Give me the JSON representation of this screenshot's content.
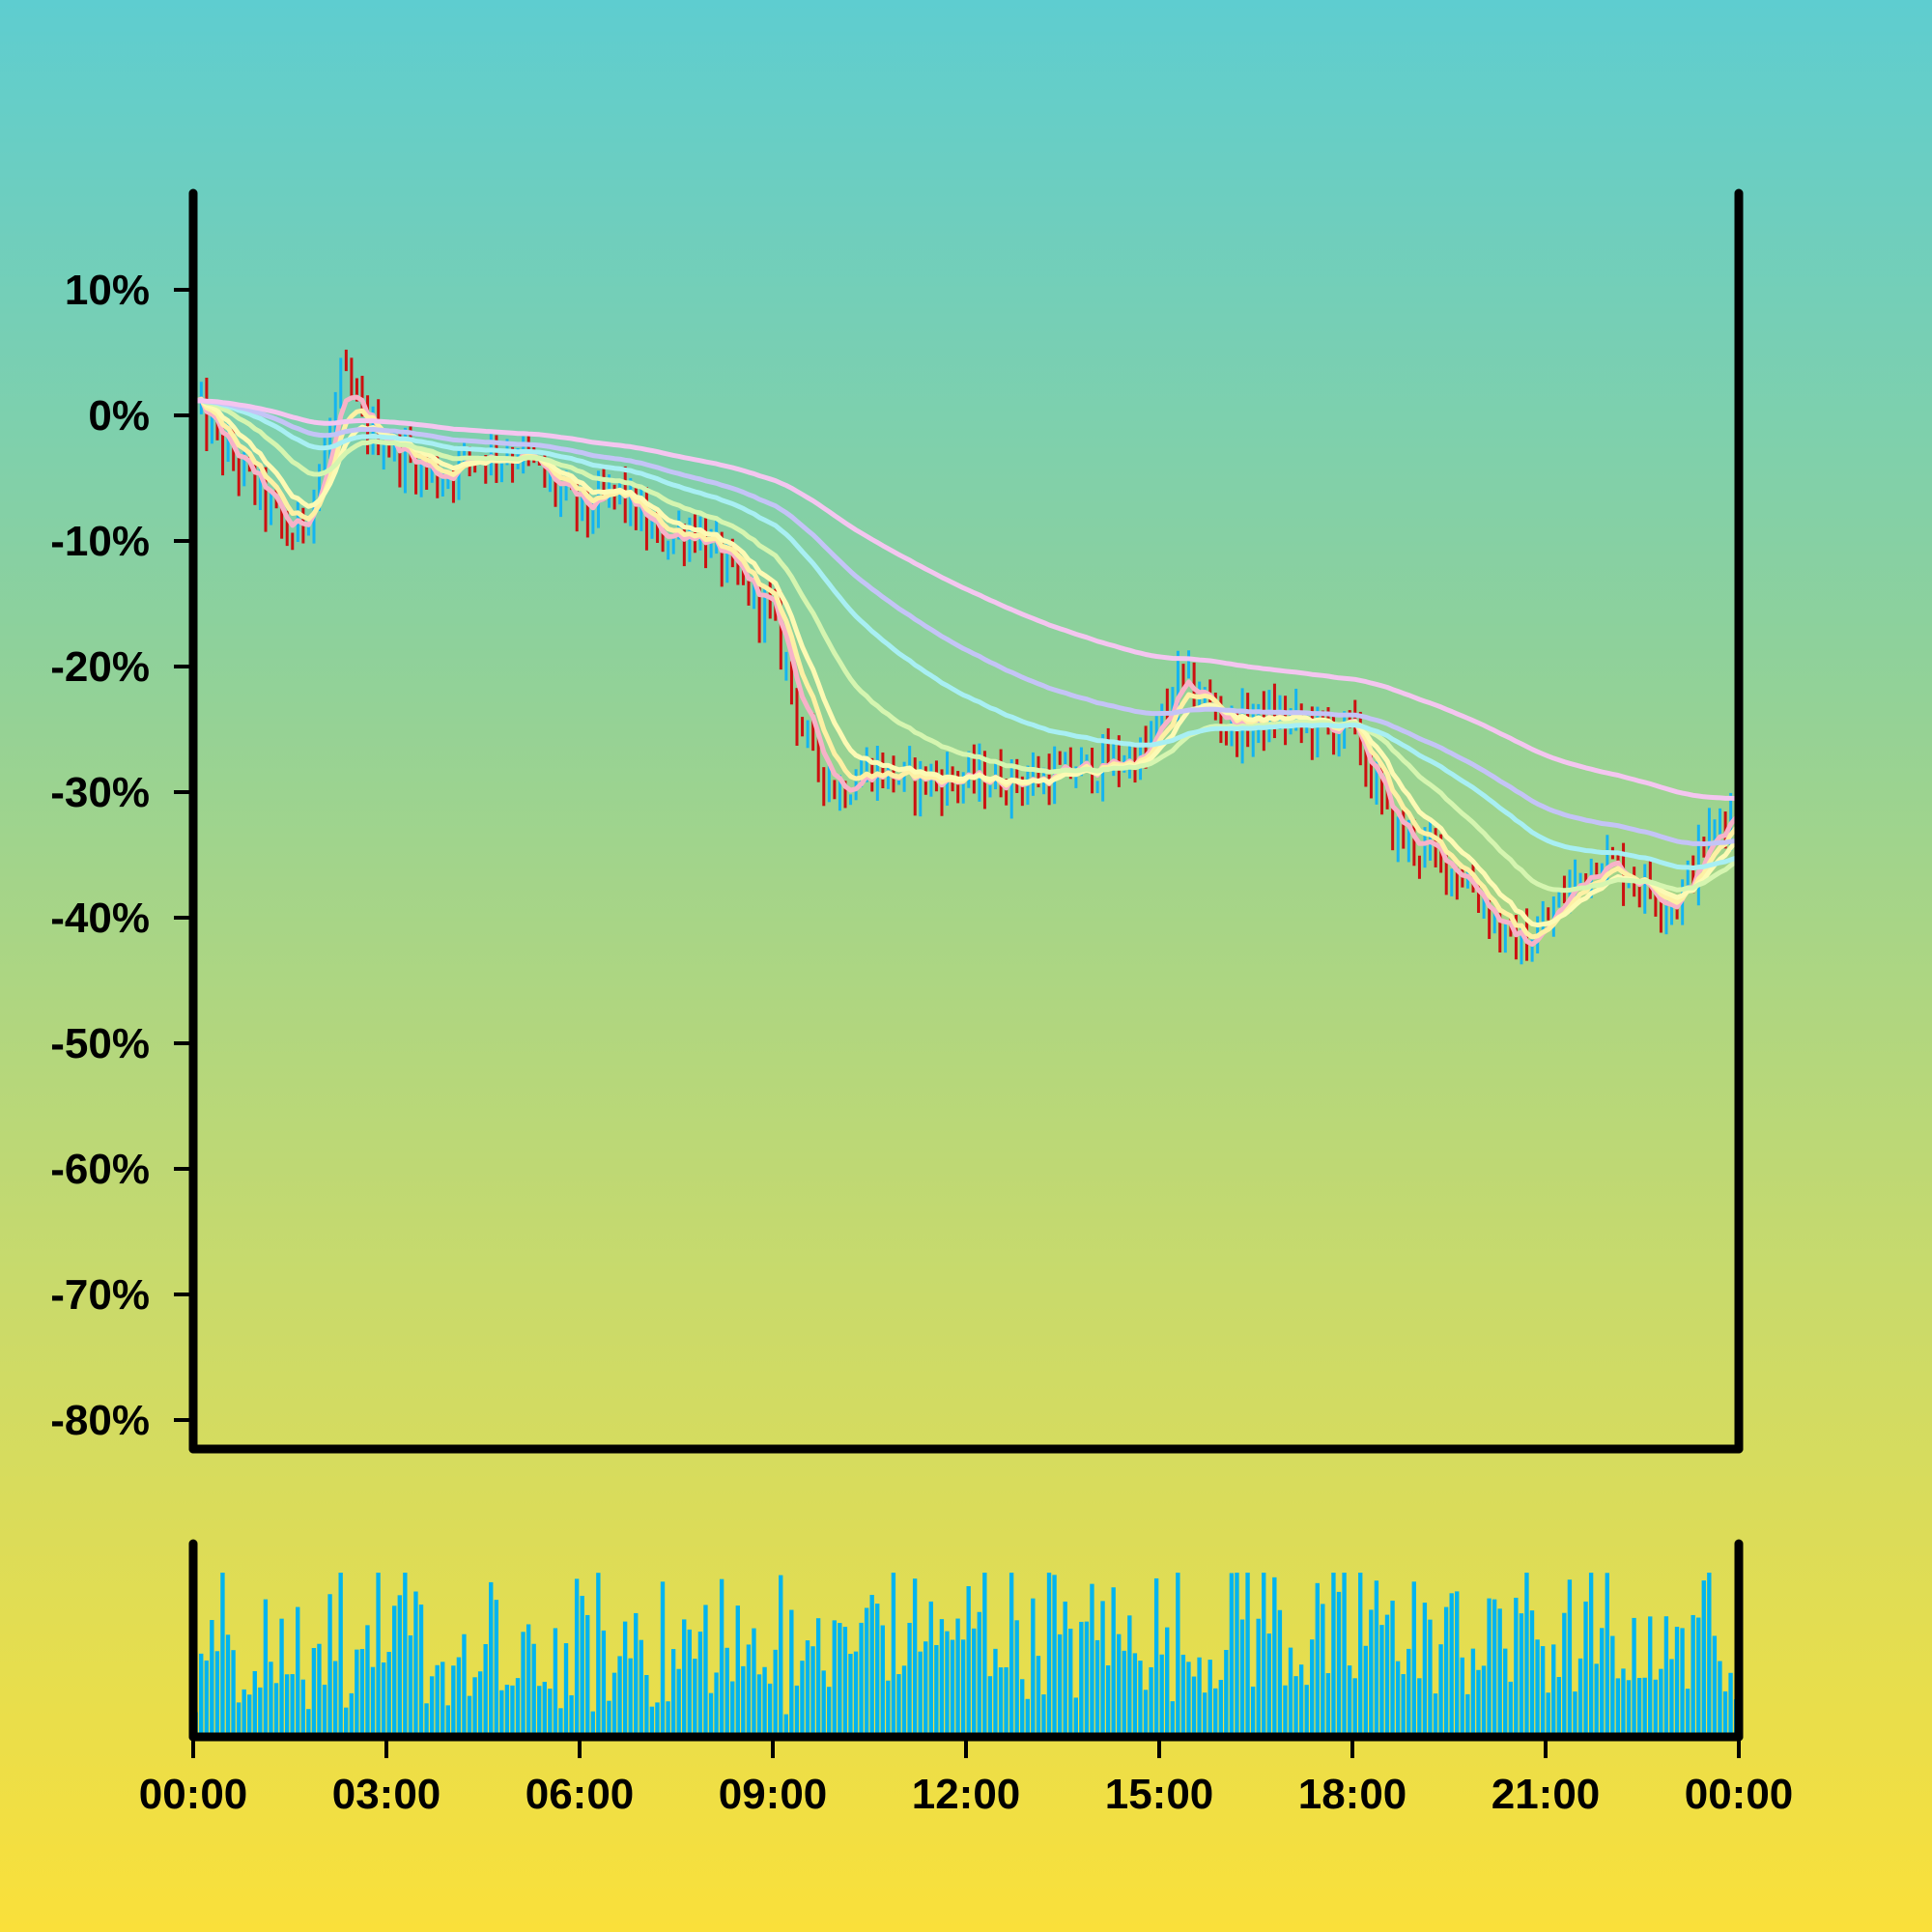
{
  "chart_data": {
    "type": "ohlc",
    "background_gradient": [
      "#5ECDD0",
      "#8ED19B",
      "#C9DA6B",
      "#FAE03A"
    ],
    "up_color": "#14B4F0",
    "down_color": "#CC1010",
    "volume_color": "#00B4F0",
    "price_axis": {
      "ylim": [
        -82,
        18
      ],
      "ticks": [
        10,
        0,
        -10,
        -20,
        -30,
        -40,
        -50,
        -60,
        -70,
        -80
      ],
      "tick_labels": [
        "10%",
        "0%",
        "-10%",
        "-20%",
        "-30%",
        "-40%",
        "-50%",
        "-60%",
        "-70%",
        "-80%"
      ]
    },
    "time_axis": {
      "range_hours": [
        0,
        24
      ],
      "ticks": [
        0,
        3,
        6,
        9,
        12,
        15,
        18,
        21,
        24
      ],
      "tick_labels": [
        "00:00",
        "03:00",
        "06:00",
        "09:00",
        "12:00",
        "15:00",
        "18:00",
        "21:00",
        "00:00"
      ]
    },
    "price_path": [
      [
        0,
        1
      ],
      [
        0.5,
        -3
      ],
      [
        1.0,
        -6
      ],
      [
        1.5,
        -10
      ],
      [
        1.75,
        -8
      ],
      [
        2.0,
        -4
      ],
      [
        2.3,
        3
      ],
      [
        2.7,
        -1
      ],
      [
        3.2,
        -3
      ],
      [
        3.8,
        -5
      ],
      [
        4.4,
        -3
      ],
      [
        5.1,
        -3
      ],
      [
        5.6,
        -6
      ],
      [
        6.1,
        -8
      ],
      [
        6.6,
        -6
      ],
      [
        7.2,
        -10
      ],
      [
        7.8,
        -9
      ],
      [
        8.4,
        -13
      ],
      [
        9.0,
        -16
      ],
      [
        9.5,
        -26
      ],
      [
        10.0,
        -30
      ],
      [
        10.5,
        -28
      ],
      [
        11.0,
        -29
      ],
      [
        12.0,
        -29
      ],
      [
        13.0,
        -29
      ],
      [
        14.0,
        -28
      ],
      [
        14.8,
        -27
      ],
      [
        15.3,
        -21
      ],
      [
        15.6,
        -22
      ],
      [
        16.1,
        -25
      ],
      [
        16.8,
        -24
      ],
      [
        17.5,
        -25
      ],
      [
        18.0,
        -25
      ],
      [
        18.6,
        -33
      ],
      [
        19.2,
        -35
      ],
      [
        19.8,
        -37
      ],
      [
        20.4,
        -42
      ],
      [
        20.8,
        -42
      ],
      [
        21.3,
        -38
      ],
      [
        21.8,
        -35
      ],
      [
        22.4,
        -37
      ],
      [
        23.0,
        -39
      ],
      [
        23.5,
        -34
      ],
      [
        24.0,
        -30
      ]
    ],
    "series": [
      {
        "period": 5,
        "color": "#F7B2C8"
      },
      {
        "period": 8,
        "color": "#FDF0A4"
      },
      {
        "period": 13,
        "color": "#FCFAB4"
      },
      {
        "period": 30,
        "color": "#D5F5B0"
      },
      {
        "period": 60,
        "color": "#A8EFF3"
      },
      {
        "period": 90,
        "color": "#C4C4F6"
      },
      {
        "period": 150,
        "color": "#F4C6F0"
      }
    ]
  }
}
